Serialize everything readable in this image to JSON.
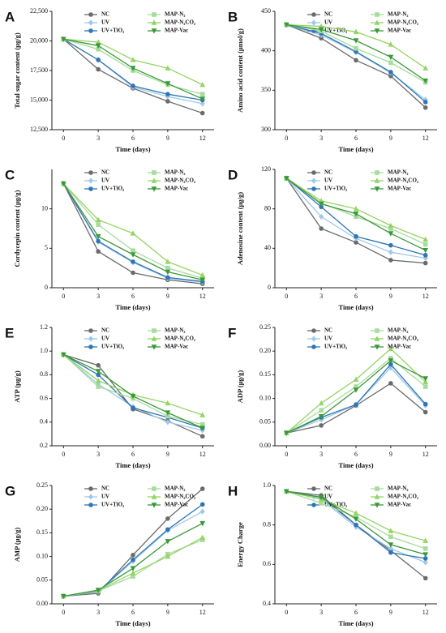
{
  "chart_data": [
    {
      "type": "line",
      "panel": "A",
      "ylabel": "Total sugar content (μg/g)",
      "xlabel": "Time (days)",
      "x": [
        0,
        3,
        6,
        9,
        12
      ],
      "xlim": [
        -1,
        13
      ],
      "xticks": [
        0,
        3,
        6,
        9,
        12
      ],
      "ylim": [
        12500,
        22500
      ],
      "yticks": [
        {
          "value": 12500,
          "label": "12,500"
        },
        {
          "value": 15000,
          "label": "15,000"
        },
        {
          "value": 17500,
          "label": "17,500"
        },
        {
          "value": 20000,
          "label": "20,000"
        },
        {
          "value": 22500,
          "label": "22,500"
        }
      ],
      "series": [
        {
          "name": "NC",
          "color": "#6b6b6b",
          "marker": "circle",
          "values": [
            20150,
            17600,
            16000,
            14900,
            13900
          ]
        },
        {
          "name": "UV",
          "color": "#9fc9ea",
          "marker": "diamond",
          "values": [
            20150,
            18400,
            16100,
            15300,
            14700
          ]
        },
        {
          "name": "UV+TiO₂",
          "color": "#2e75b6",
          "marker": "circle",
          "values": [
            20150,
            18400,
            16200,
            15500,
            15000
          ]
        },
        {
          "name": "MAP-N₂",
          "color": "#a6dc9c",
          "marker": "square",
          "values": [
            20150,
            19300,
            17500,
            16300,
            15500
          ]
        },
        {
          "name": "MAP-N₂CO₂",
          "color": "#94d464",
          "marker": "triangle-up",
          "values": [
            20150,
            19900,
            18400,
            17700,
            16300
          ]
        },
        {
          "name": "MAP-Vac",
          "color": "#3a983a",
          "marker": "triangle-down",
          "values": [
            20150,
            19600,
            17700,
            16400,
            15100
          ]
        }
      ]
    },
    {
      "type": "line",
      "panel": "B",
      "ylabel": "Amino acid content (μmol/g)",
      "xlabel": "Time (days)",
      "x": [
        0,
        3,
        6,
        9,
        12
      ],
      "xlim": [
        -1,
        13
      ],
      "xticks": [
        0,
        3,
        6,
        9,
        12
      ],
      "ylim": [
        300,
        450
      ],
      "yticks": [
        300,
        350,
        400,
        450
      ],
      "series": [
        {
          "name": "NC",
          "color": "#6b6b6b",
          "marker": "circle",
          "values": [
            433,
            416,
            388,
            368,
            328
          ]
        },
        {
          "name": "UV",
          "color": "#9fc9ea",
          "marker": "diamond",
          "values": [
            433,
            420,
            398,
            372,
            338
          ]
        },
        {
          "name": "UV+TiO₂",
          "color": "#2e75b6",
          "marker": "circle",
          "values": [
            433,
            422,
            399,
            373,
            335
          ]
        },
        {
          "name": "MAP-N₂",
          "color": "#a6dc9c",
          "marker": "square",
          "values": [
            433,
            425,
            403,
            385,
            360
          ]
        },
        {
          "name": "MAP-N₂CO₂",
          "color": "#94d464",
          "marker": "triangle-up",
          "values": [
            433,
            431,
            424,
            408,
            378
          ]
        },
        {
          "name": "MAP-Vac",
          "color": "#3a983a",
          "marker": "triangle-down",
          "values": [
            433,
            427,
            413,
            392,
            362
          ]
        }
      ]
    },
    {
      "type": "line",
      "panel": "C",
      "ylabel": "Cordycepin content (μg/g)",
      "xlabel": "Time (days)",
      "x": [
        0,
        3,
        6,
        9,
        12
      ],
      "xlim": [
        -1,
        13
      ],
      "xticks": [
        0,
        3,
        6,
        9,
        12
      ],
      "ylim": [
        0,
        15
      ],
      "yticks": [
        0,
        5,
        10
      ],
      "series": [
        {
          "name": "NC",
          "color": "#6b6b6b",
          "marker": "circle",
          "values": [
            13.2,
            4.6,
            1.9,
            1.0,
            0.5
          ]
        },
        {
          "name": "UV",
          "color": "#9fc9ea",
          "marker": "diamond",
          "values": [
            13.2,
            5.8,
            3.2,
            1.2,
            0.7
          ]
        },
        {
          "name": "UV+TiO₂",
          "color": "#2e75b6",
          "marker": "circle",
          "values": [
            13.2,
            5.9,
            3.3,
            1.3,
            0.8
          ]
        },
        {
          "name": "MAP-N₂",
          "color": "#a6dc9c",
          "marker": "square",
          "values": [
            13.2,
            8.0,
            4.7,
            2.5,
            1.2
          ]
        },
        {
          "name": "MAP-N₂CO₂",
          "color": "#94d464",
          "marker": "triangle-up",
          "values": [
            13.2,
            8.6,
            6.9,
            3.3,
            1.6
          ]
        },
        {
          "name": "MAP-Vac",
          "color": "#3a983a",
          "marker": "triangle-down",
          "values": [
            13.2,
            6.5,
            4.2,
            2.0,
            1.0
          ]
        }
      ]
    },
    {
      "type": "line",
      "panel": "D",
      "ylabel": "Adenosine content (μg/g)",
      "xlabel": "Time (days)",
      "x": [
        0,
        3,
        6,
        9,
        12
      ],
      "xlim": [
        -1,
        13
      ],
      "xticks": [
        0,
        3,
        6,
        9,
        12
      ],
      "ylim": [
        0,
        120
      ],
      "yticks": [
        0,
        40,
        80,
        120
      ],
      "series": [
        {
          "name": "NC",
          "color": "#6b6b6b",
          "marker": "circle",
          "values": [
            111,
            60,
            46,
            28,
            25
          ]
        },
        {
          "name": "UV",
          "color": "#9fc9ea",
          "marker": "diamond",
          "values": [
            111,
            72,
            50,
            36,
            30
          ]
        },
        {
          "name": "UV+TiO₂",
          "color": "#2e75b6",
          "marker": "circle",
          "values": [
            111,
            82,
            52,
            43,
            33
          ]
        },
        {
          "name": "MAP-N₂",
          "color": "#a6dc9c",
          "marker": "square",
          "values": [
            111,
            86,
            72,
            60,
            44
          ]
        },
        {
          "name": "MAP-N₂CO₂",
          "color": "#94d464",
          "marker": "triangle-up",
          "values": [
            111,
            88,
            80,
            63,
            49
          ]
        },
        {
          "name": "MAP-Vac",
          "color": "#3a983a",
          "marker": "triangle-down",
          "values": [
            111,
            85,
            75,
            55,
            38
          ]
        }
      ]
    },
    {
      "type": "line",
      "panel": "E",
      "ylabel": "ATP (μg/g)",
      "xlabel": "Time (days)",
      "x": [
        0,
        3,
        6,
        9,
        12
      ],
      "xlim": [
        -1,
        13
      ],
      "xticks": [
        0,
        3,
        6,
        9,
        12
      ],
      "ylim": [
        0.2,
        1.2
      ],
      "yticks": [
        0.2,
        0.4,
        0.6,
        0.8,
        {
          "value": 1,
          "label": "1.0"
        },
        1.2
      ],
      "series": [
        {
          "name": "NC",
          "color": "#6b6b6b",
          "marker": "circle",
          "values": [
            0.97,
            0.88,
            0.51,
            0.41,
            0.28
          ]
        },
        {
          "name": "UV",
          "color": "#9fc9ea",
          "marker": "diamond",
          "values": [
            0.97,
            0.72,
            0.53,
            0.4,
            0.33
          ]
        },
        {
          "name": "UV+TiO₂",
          "color": "#2e75b6",
          "marker": "circle",
          "values": [
            0.97,
            0.8,
            0.52,
            0.44,
            0.35
          ]
        },
        {
          "name": "MAP-N₂",
          "color": "#a6dc9c",
          "marker": "square",
          "values": [
            0.97,
            0.7,
            0.6,
            0.45,
            0.38
          ]
        },
        {
          "name": "MAP-N₂CO₂",
          "color": "#94d464",
          "marker": "triangle-up",
          "values": [
            0.97,
            0.75,
            0.63,
            0.56,
            0.46
          ]
        },
        {
          "name": "MAP-Vac",
          "color": "#3a983a",
          "marker": "triangle-down",
          "values": [
            0.97,
            0.83,
            0.62,
            0.48,
            0.35
          ]
        }
      ]
    },
    {
      "type": "line",
      "panel": "F",
      "ylabel": "ADP (μg/g)",
      "xlabel": "Time (days)",
      "x": [
        0,
        3,
        6,
        9,
        12
      ],
      "xlim": [
        -1,
        13
      ],
      "xticks": [
        0,
        3,
        6,
        9,
        12
      ],
      "ylim": [
        0,
        0.25
      ],
      "yticks": [
        {
          "value": 0,
          "label": "0.00"
        },
        0.05,
        {
          "value": 0.1,
          "label": "0.10"
        },
        0.15,
        {
          "value": 0.2,
          "label": "0.20"
        },
        0.25
      ],
      "series": [
        {
          "name": "NC",
          "color": "#6b6b6b",
          "marker": "circle",
          "values": [
            0.027,
            0.043,
            0.085,
            0.132,
            0.071
          ]
        },
        {
          "name": "UV",
          "color": "#9fc9ea",
          "marker": "diamond",
          "values": [
            0.027,
            0.055,
            0.087,
            0.165,
            0.085
          ]
        },
        {
          "name": "UV+TiO₂",
          "color": "#2e75b6",
          "marker": "circle",
          "values": [
            0.027,
            0.06,
            0.087,
            0.172,
            0.088
          ]
        },
        {
          "name": "MAP-N₂",
          "color": "#a6dc9c",
          "marker": "square",
          "values": [
            0.027,
            0.075,
            0.125,
            0.185,
            0.125
          ]
        },
        {
          "name": "MAP-N₂CO₂",
          "color": "#94d464",
          "marker": "triangle-up",
          "values": [
            0.027,
            0.09,
            0.14,
            0.205,
            0.135
          ]
        },
        {
          "name": "MAP-Vac",
          "color": "#3a983a",
          "marker": "triangle-down",
          "values": [
            0.027,
            0.062,
            0.118,
            0.18,
            0.142
          ]
        }
      ]
    },
    {
      "type": "line",
      "panel": "G",
      "ylabel": "AMP (μg/g)",
      "xlabel": "Time (days)",
      "x": [
        0,
        3,
        6,
        9,
        12
      ],
      "xlim": [
        -1,
        13
      ],
      "xticks": [
        0,
        3,
        6,
        9,
        12
      ],
      "ylim": [
        0,
        0.25
      ],
      "yticks": [
        {
          "value": 0,
          "label": "0.00"
        },
        0.05,
        {
          "value": 0.1,
          "label": "0.10"
        },
        0.15,
        {
          "value": 0.2,
          "label": "0.20"
        },
        0.25
      ],
      "series": [
        {
          "name": "NC",
          "color": "#6b6b6b",
          "marker": "circle",
          "values": [
            0.016,
            0.022,
            0.103,
            0.18,
            0.243
          ]
        },
        {
          "name": "UV",
          "color": "#9fc9ea",
          "marker": "diamond",
          "values": [
            0.016,
            0.025,
            0.09,
            0.155,
            0.195
          ]
        },
        {
          "name": "UV+TiO₂",
          "color": "#2e75b6",
          "marker": "circle",
          "values": [
            0.016,
            0.026,
            0.093,
            0.157,
            0.21
          ]
        },
        {
          "name": "MAP-N₂",
          "color": "#a6dc9c",
          "marker": "square",
          "values": [
            0.016,
            0.027,
            0.058,
            0.105,
            0.135
          ]
        },
        {
          "name": "MAP-N₂CO₂",
          "color": "#94d464",
          "marker": "triangle-up",
          "values": [
            0.016,
            0.028,
            0.065,
            0.1,
            0.14
          ]
        },
        {
          "name": "MAP-Vac",
          "color": "#3a983a",
          "marker": "triangle-down",
          "values": [
            0.016,
            0.029,
            0.075,
            0.132,
            0.17
          ]
        }
      ]
    },
    {
      "type": "line",
      "panel": "H",
      "ylabel": "Energy Charge",
      "xlabel": "Time (days)",
      "x": [
        0,
        3,
        6,
        9,
        12
      ],
      "xlim": [
        -1,
        13
      ],
      "xticks": [
        0,
        3,
        6,
        9,
        12
      ],
      "ylim": [
        0.4,
        1.0
      ],
      "yticks": [
        0.4,
        0.6,
        0.8,
        {
          "value": 1,
          "label": "1.0"
        }
      ],
      "series": [
        {
          "name": "NC",
          "color": "#6b6b6b",
          "marker": "circle",
          "values": [
            0.97,
            0.95,
            0.8,
            0.67,
            0.53
          ]
        },
        {
          "name": "UV",
          "color": "#9fc9ea",
          "marker": "diamond",
          "values": [
            0.97,
            0.93,
            0.79,
            0.68,
            0.61
          ]
        },
        {
          "name": "UV+TiO₂",
          "color": "#2e75b6",
          "marker": "circle",
          "values": [
            0.97,
            0.94,
            0.8,
            0.66,
            0.63
          ]
        },
        {
          "name": "MAP-N₂",
          "color": "#a6dc9c",
          "marker": "square",
          "values": [
            0.97,
            0.91,
            0.84,
            0.74,
            0.68
          ]
        },
        {
          "name": "MAP-N₂CO₂",
          "color": "#94d464",
          "marker": "triangle-up",
          "values": [
            0.97,
            0.93,
            0.86,
            0.77,
            0.72
          ]
        },
        {
          "name": "MAP-Vac",
          "color": "#3a983a",
          "marker": "triangle-down",
          "values": [
            0.97,
            0.94,
            0.83,
            0.7,
            0.65
          ]
        }
      ]
    }
  ]
}
